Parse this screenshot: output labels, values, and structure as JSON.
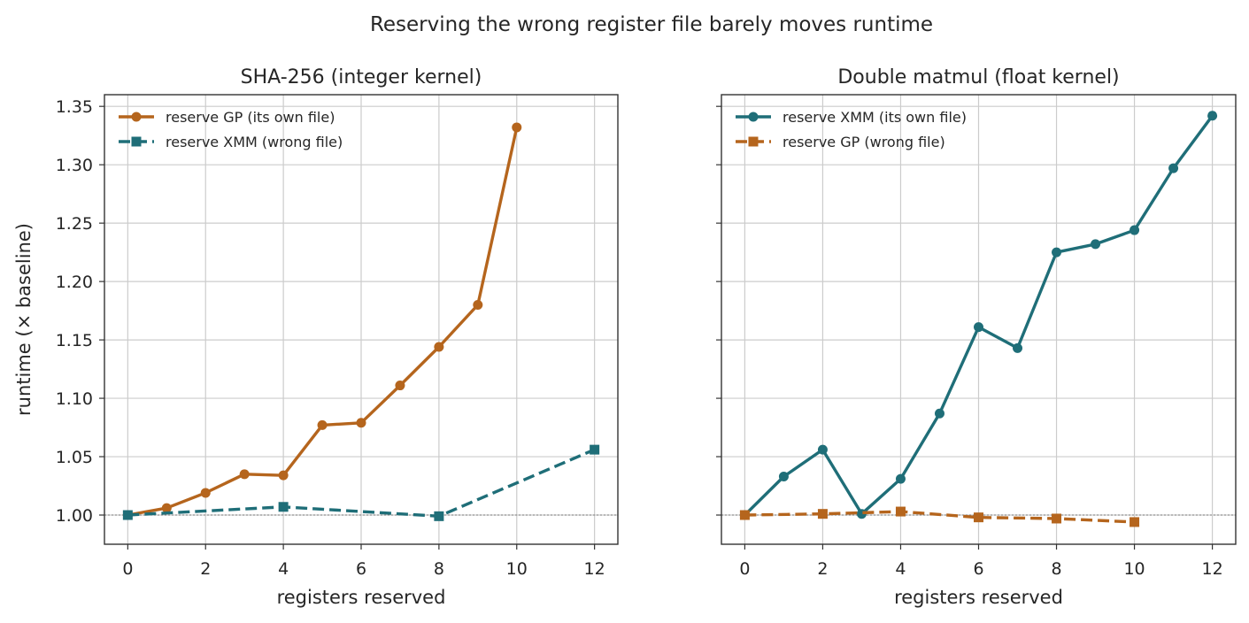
{
  "figure_title": "Reserving the wrong register file barely moves runtime",
  "colors": {
    "orange": "#B5651D",
    "teal": "#1F6E78",
    "grid": "#cccccc",
    "spine": "#333333",
    "baseline": "#808080"
  },
  "chart_data": [
    {
      "type": "line",
      "title": "SHA-256 (integer kernel)",
      "xlabel": "registers reserved",
      "ylabel": "runtime (× baseline)",
      "xlim": [
        -0.6,
        12.6
      ],
      "ylim": [
        0.975,
        1.36
      ],
      "xticks": [
        0,
        2,
        4,
        6,
        8,
        10,
        12
      ],
      "yticks": [
        1.0,
        1.05,
        1.1,
        1.15,
        1.2,
        1.25,
        1.3,
        1.35
      ],
      "baseline": 1.0,
      "grid": true,
      "legend_position": "top-left",
      "series": [
        {
          "name": "reserve GP (its own file)",
          "color": "#B5651D",
          "style": "solid",
          "marker": "circle",
          "x": [
            0,
            1,
            2,
            3,
            4,
            5,
            6,
            7,
            8,
            9,
            10
          ],
          "y": [
            1.0,
            1.006,
            1.019,
            1.035,
            1.034,
            1.077,
            1.079,
            1.111,
            1.144,
            1.18,
            1.332
          ]
        },
        {
          "name": "reserve XMM (wrong file)",
          "color": "#1F6E78",
          "style": "dashed",
          "marker": "square",
          "x": [
            0,
            4,
            8,
            12
          ],
          "y": [
            1.0,
            1.007,
            0.999,
            1.056
          ]
        }
      ]
    },
    {
      "type": "line",
      "title": "Double matmul (float kernel)",
      "xlabel": "registers reserved",
      "ylabel": "",
      "xlim": [
        -0.6,
        12.6
      ],
      "ylim": [
        0.975,
        1.36
      ],
      "xticks": [
        0,
        2,
        4,
        6,
        8,
        10,
        12
      ],
      "yticks": [
        1.0,
        1.05,
        1.1,
        1.15,
        1.2,
        1.25,
        1.3,
        1.35
      ],
      "baseline": 1.0,
      "grid": true,
      "legend_position": "top-left",
      "series": [
        {
          "name": "reserve XMM (its own file)",
          "color": "#1F6E78",
          "style": "solid",
          "marker": "circle",
          "x": [
            0,
            1,
            2,
            3,
            4,
            5,
            6,
            7,
            8,
            9,
            10,
            11,
            12
          ],
          "y": [
            1.0,
            1.033,
            1.056,
            1.001,
            1.031,
            1.087,
            1.161,
            1.143,
            1.225,
            1.232,
            1.244,
            1.297,
            1.342
          ]
        },
        {
          "name": "reserve GP (wrong file)",
          "color": "#B5651D",
          "style": "dashed",
          "marker": "square",
          "x": [
            0,
            2,
            4,
            6,
            8,
            10
          ],
          "y": [
            1.0,
            1.001,
            1.003,
            0.998,
            0.997,
            0.994
          ]
        }
      ]
    }
  ]
}
